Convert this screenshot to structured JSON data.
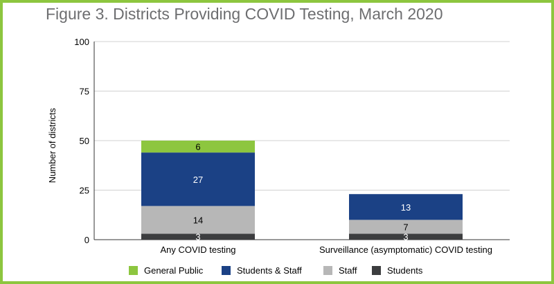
{
  "title": "Figure 3. Districts Providing COVID Testing, March 2020",
  "chart_data": {
    "type": "bar",
    "stacked": true,
    "categories": [
      "Any COVID testing",
      "Surveillance (asymptomatic) COVID testing"
    ],
    "series": [
      {
        "name": "Students",
        "values": [
          3,
          3
        ],
        "color": "#3c3d3f",
        "label_color": "#ffffff"
      },
      {
        "name": "Staff",
        "values": [
          14,
          7
        ],
        "color": "#b7b7b7",
        "label_color": "#000000"
      },
      {
        "name": "Students & Staff",
        "values": [
          27,
          13
        ],
        "color": "#1b4185",
        "label_color": "#ffffff"
      },
      {
        "name": "General Public",
        "values": [
          6,
          0
        ],
        "color": "#8dc63f",
        "label_color": "#000000"
      }
    ],
    "legend_order": [
      "General Public",
      "Students & Staff",
      "Staff",
      "Students"
    ],
    "ylabel": "Number of districts",
    "ylim": [
      0,
      100
    ],
    "yticks": [
      0,
      25,
      50,
      75,
      100
    ],
    "grid": true,
    "legend_position": "bottom"
  }
}
